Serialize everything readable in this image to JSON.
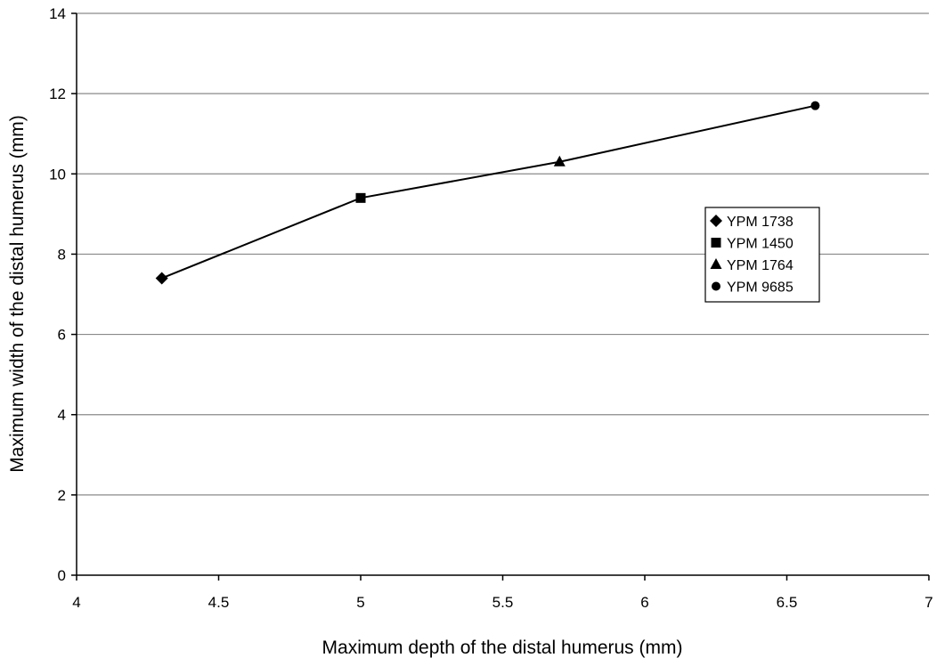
{
  "chart_data": {
    "type": "line",
    "title": "",
    "xlabel": "Maximum depth of the distal humerus (mm)",
    "ylabel": "Maximum width of the distal humerus (mm)",
    "xlim": [
      4,
      7
    ],
    "ylim": [
      0,
      14
    ],
    "x_ticks": [
      4,
      4.5,
      5,
      5.5,
      6,
      6.5,
      7
    ],
    "y_ticks": [
      0,
      2,
      4,
      6,
      8,
      10,
      12,
      14
    ],
    "grid": {
      "horizontal": true,
      "vertical": false
    },
    "legend_position": "right",
    "line_color": "#000000",
    "points": [
      {
        "name": "YPM 1738",
        "x": 4.3,
        "y": 7.4,
        "marker": "diamond"
      },
      {
        "name": "YPM 1450",
        "x": 5.0,
        "y": 9.4,
        "marker": "square"
      },
      {
        "name": "YPM 1764",
        "x": 5.7,
        "y": 10.3,
        "marker": "triangle"
      },
      {
        "name": "YPM 9685",
        "x": 6.6,
        "y": 11.7,
        "marker": "circle"
      }
    ]
  }
}
